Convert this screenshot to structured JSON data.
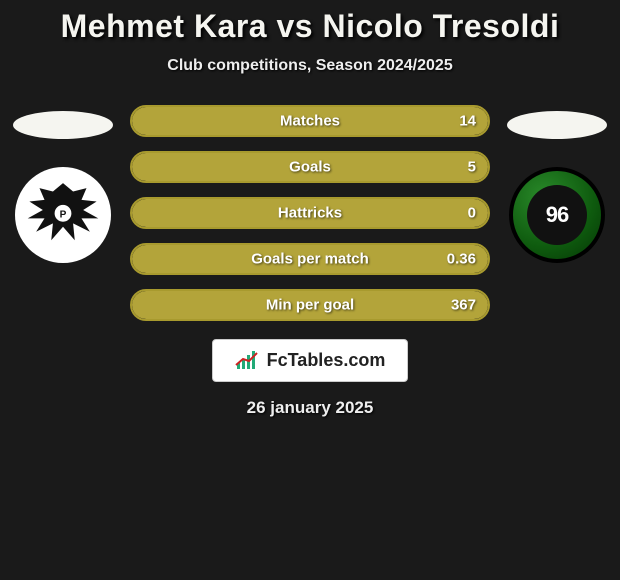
{
  "title": "Mehmet Kara vs Nicolo Tresoldi",
  "subtitle": "Club competitions, Season 2024/2025",
  "left_club": {
    "name": "Preussen Münster",
    "logo_type": "eagle"
  },
  "right_club": {
    "name": "Hannover 96",
    "logo_type": "h96",
    "text": "96"
  },
  "stats": [
    {
      "label": "Matches",
      "right_value": "14",
      "fill_pct": 100
    },
    {
      "label": "Goals",
      "right_value": "5",
      "fill_pct": 100
    },
    {
      "label": "Hattricks",
      "right_value": "0",
      "fill_pct": 100
    },
    {
      "label": "Goals per match",
      "right_value": "0.36",
      "fill_pct": 100
    },
    {
      "label": "Min per goal",
      "right_value": "367",
      "fill_pct": 100
    }
  ],
  "brand": "FcTables.com",
  "date": "26 january 2025",
  "colors": {
    "background": "#1a1a1a",
    "bar_border": "#a89a2e",
    "bar_fill": "#b3a43a",
    "text_light": "#f5f5f0"
  }
}
